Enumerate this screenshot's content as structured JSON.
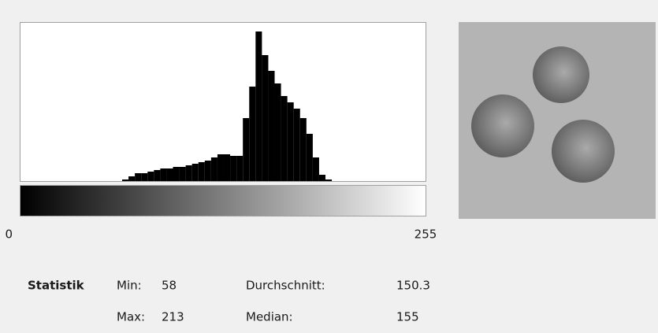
{
  "chart_data": {
    "type": "histogram",
    "bins": [
      56,
      60,
      64,
      68,
      72,
      76,
      80,
      84,
      88,
      92,
      96,
      100,
      104,
      108,
      112,
      116,
      120,
      124,
      128,
      132,
      136,
      140,
      144,
      148,
      152,
      156,
      160,
      164,
      168,
      172,
      176,
      180,
      184,
      188,
      192,
      196,
      200,
      204,
      208,
      212,
      216
    ],
    "values": [
      0,
      0,
      1,
      3,
      5,
      5,
      6,
      7,
      8,
      8,
      9,
      9,
      10,
      11,
      12,
      13,
      15,
      17,
      17,
      16,
      16,
      40,
      60,
      95,
      80,
      70,
      62,
      54,
      50,
      46,
      40,
      30,
      15,
      4,
      1,
      0,
      0,
      0,
      0,
      0
    ],
    "color": "#000000",
    "xlim": [
      0,
      255
    ],
    "xticks": [
      0,
      255
    ],
    "ylim": [
      0,
      100
    ]
  },
  "statistics": {
    "title": "Statistik",
    "items": [
      {
        "label": "Min:",
        "value": 58
      },
      {
        "label": "Max:",
        "value": 213
      },
      {
        "label": "Durchschnitt:",
        "value": 150.3
      },
      {
        "label": "Median:",
        "value": 155
      }
    ]
  }
}
